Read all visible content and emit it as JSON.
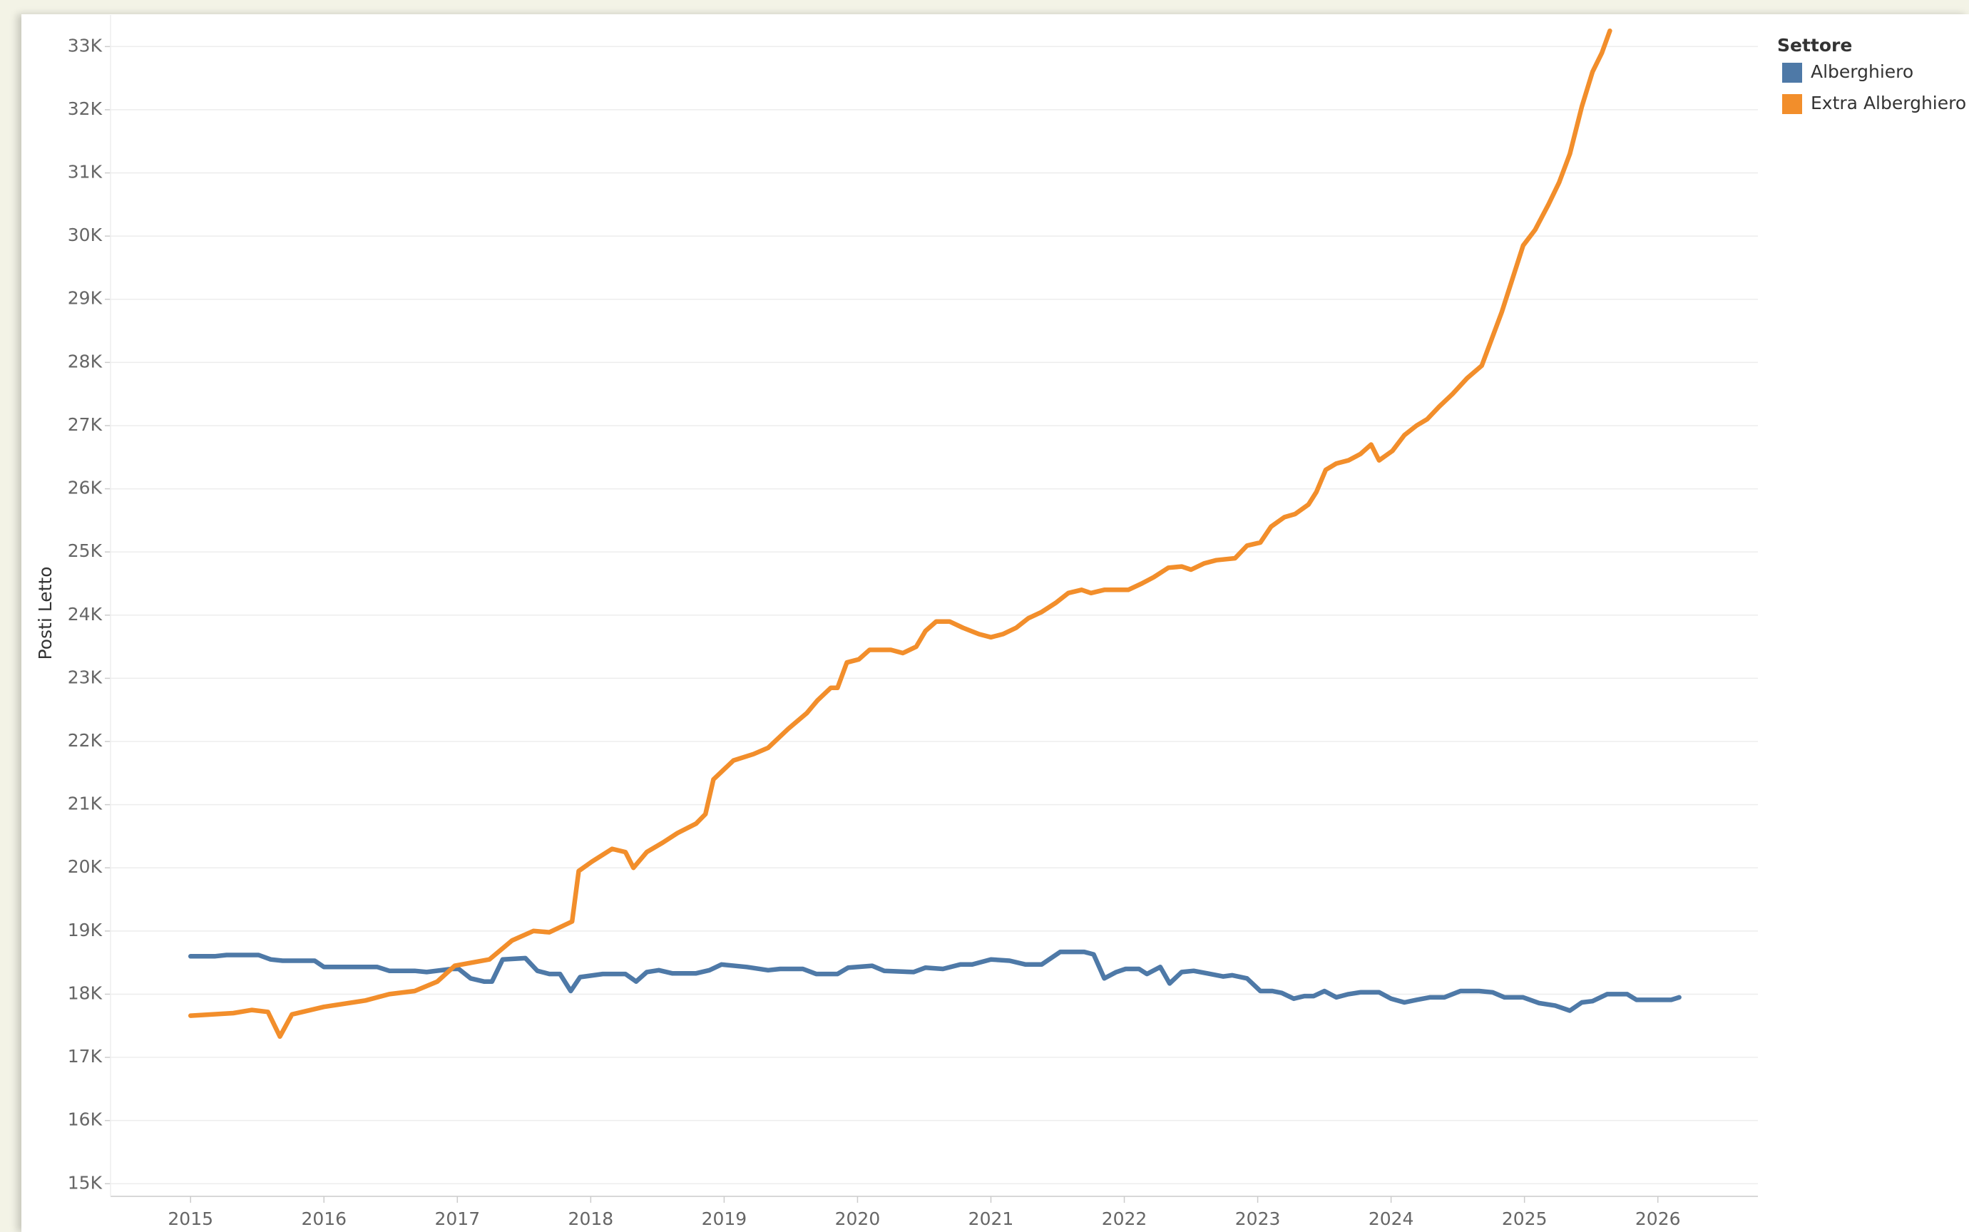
{
  "chart_data": {
    "type": "line",
    "y_label": "Posti Letto",
    "legend_title": "Settore",
    "legend_position": "right",
    "grid": true,
    "xlim": [
      2014.4,
      2026.75
    ],
    "xticks": [
      2015,
      2016,
      2017,
      2018,
      2019,
      2020,
      2021,
      2022,
      2023,
      2024,
      2025,
      2026
    ],
    "ylim": [
      14.8,
      33.5
    ],
    "yticks": [
      {
        "value": 15,
        "label": "15K"
      },
      {
        "value": 16,
        "label": "16K"
      },
      {
        "value": 17,
        "label": "17K"
      },
      {
        "value": 18,
        "label": "18K"
      },
      {
        "value": 19,
        "label": "19K"
      },
      {
        "value": 20,
        "label": "20K"
      },
      {
        "value": 21,
        "label": "21K"
      },
      {
        "value": 22,
        "label": "22K"
      },
      {
        "value": 23,
        "label": "23K"
      },
      {
        "value": 24,
        "label": "24K"
      },
      {
        "value": 25,
        "label": "25K"
      },
      {
        "value": 26,
        "label": "26K"
      },
      {
        "value": 27,
        "label": "27K"
      },
      {
        "value": 28,
        "label": "28K"
      },
      {
        "value": 29,
        "label": "29K"
      },
      {
        "value": 30,
        "label": "30K"
      },
      {
        "value": 31,
        "label": "31K"
      },
      {
        "value": 32,
        "label": "32K"
      },
      {
        "value": 33,
        "label": "33K"
      }
    ],
    "series": [
      {
        "name": "Alberghiero",
        "color": "#4e79a7",
        "x": [
          2015.0,
          2015.18,
          2015.27,
          2015.51,
          2015.6,
          2015.69,
          2015.93,
          2016.0,
          2016.4,
          2016.49,
          2016.68,
          2016.77,
          2016.96,
          2017.01,
          2017.1,
          2017.2,
          2017.26,
          2017.34,
          2017.51,
          2017.6,
          2017.69,
          2017.77,
          2017.85,
          2017.92,
          2018.09,
          2018.26,
          2018.34,
          2018.42,
          2018.51,
          2018.61,
          2018.79,
          2018.89,
          2018.98,
          2019.17,
          2019.33,
          2019.42,
          2019.59,
          2019.69,
          2019.85,
          2019.93,
          2020.11,
          2020.2,
          2020.42,
          2020.51,
          2020.64,
          2020.77,
          2020.86,
          2021.0,
          2021.14,
          2021.26,
          2021.38,
          2021.45,
          2021.52,
          2021.7,
          2021.77,
          2021.85,
          2021.94,
          2022.01,
          2022.11,
          2022.17,
          2022.27,
          2022.34,
          2022.43,
          2022.52,
          2022.62,
          2022.74,
          2022.81,
          2022.92,
          2023.02,
          2023.11,
          2023.18,
          2023.27,
          2023.35,
          2023.42,
          2023.5,
          2023.59,
          2023.68,
          2023.77,
          2023.91,
          2024.0,
          2024.1,
          2024.19,
          2024.29,
          2024.4,
          2024.52,
          2024.66,
          2024.76,
          2024.85,
          2024.99,
          2025.11,
          2025.23,
          2025.34,
          2025.43,
          2025.51,
          2025.62,
          2025.77,
          2025.84,
          2026.02,
          2026.1,
          2026.16
        ],
        "values": [
          18.6,
          18.6,
          18.62,
          18.62,
          18.55,
          18.53,
          18.53,
          18.43,
          18.43,
          18.37,
          18.37,
          18.35,
          18.4,
          18.4,
          18.25,
          18.2,
          18.2,
          18.55,
          18.57,
          18.37,
          18.32,
          18.32,
          18.05,
          18.27,
          18.32,
          18.32,
          18.2,
          18.35,
          18.38,
          18.33,
          18.33,
          18.38,
          18.47,
          18.43,
          18.38,
          18.4,
          18.4,
          18.32,
          18.32,
          18.42,
          18.45,
          18.37,
          18.35,
          18.42,
          18.4,
          18.47,
          18.47,
          18.55,
          18.53,
          18.47,
          18.47,
          18.57,
          18.67,
          18.67,
          18.63,
          18.25,
          18.35,
          18.4,
          18.4,
          18.32,
          18.43,
          18.17,
          18.35,
          18.37,
          18.33,
          18.28,
          18.3,
          18.25,
          18.05,
          18.05,
          18.02,
          17.93,
          17.97,
          17.97,
          18.05,
          17.95,
          18.0,
          18.03,
          18.03,
          17.93,
          17.87,
          17.91,
          17.95,
          17.95,
          18.05,
          18.05,
          18.03,
          17.95,
          17.95,
          17.86,
          17.82,
          17.74,
          17.87,
          17.89,
          18.0,
          18.0,
          17.91,
          17.91,
          17.91,
          17.95
        ]
      },
      {
        "name": "Extra Alberghiero",
        "color": "#f28e2b",
        "x": [
          2015.0,
          2015.32,
          2015.46,
          2015.58,
          2015.67,
          2015.76,
          2016.0,
          2016.31,
          2016.49,
          2016.68,
          2016.85,
          2016.98,
          2017.24,
          2017.41,
          2017.57,
          2017.69,
          2017.86,
          2017.91,
          2018.01,
          2018.16,
          2018.26,
          2018.32,
          2018.42,
          2018.54,
          2018.65,
          2018.79,
          2018.86,
          2018.92,
          2019.07,
          2019.22,
          2019.33,
          2019.48,
          2019.62,
          2019.7,
          2019.8,
          2019.85,
          2019.92,
          2020.01,
          2020.09,
          2020.25,
          2020.34,
          2020.44,
          2020.51,
          2020.59,
          2020.69,
          2020.79,
          2020.91,
          2021.0,
          2021.09,
          2021.19,
          2021.28,
          2021.38,
          2021.49,
          2021.58,
          2021.68,
          2021.75,
          2021.85,
          2021.96,
          2022.03,
          2022.13,
          2022.22,
          2022.33,
          2022.43,
          2022.5,
          2022.6,
          2022.69,
          2022.83,
          2022.92,
          2023.02,
          2023.1,
          2023.2,
          2023.28,
          2023.38,
          2023.44,
          2023.51,
          2023.59,
          2023.68,
          2023.77,
          2023.85,
          2023.91,
          2024.01,
          2024.1,
          2024.19,
          2024.27,
          2024.36,
          2024.46,
          2024.57,
          2024.68,
          2024.83,
          2024.99,
          2025.08,
          2025.18,
          2025.26,
          2025.34,
          2025.43,
          2025.51,
          2025.58,
          2025.64
        ],
        "values": [
          17.66,
          17.7,
          17.75,
          17.72,
          17.33,
          17.68,
          17.8,
          17.9,
          18.0,
          18.05,
          18.2,
          18.45,
          18.55,
          18.85,
          19.0,
          18.98,
          19.15,
          19.95,
          20.1,
          20.3,
          20.25,
          20.0,
          20.25,
          20.4,
          20.55,
          20.7,
          20.85,
          21.4,
          21.7,
          21.8,
          21.9,
          22.2,
          22.45,
          22.65,
          22.85,
          22.85,
          23.25,
          23.3,
          23.45,
          23.45,
          23.4,
          23.5,
          23.75,
          23.9,
          23.9,
          23.8,
          23.7,
          23.65,
          23.7,
          23.8,
          23.95,
          24.05,
          24.2,
          24.35,
          24.4,
          24.35,
          24.4,
          24.4,
          24.4,
          24.5,
          24.6,
          24.75,
          24.77,
          24.72,
          24.82,
          24.87,
          24.9,
          25.1,
          25.15,
          25.4,
          25.55,
          25.6,
          25.75,
          25.95,
          26.3,
          26.4,
          26.45,
          26.55,
          26.7,
          26.45,
          26.6,
          26.85,
          27.0,
          27.1,
          27.3,
          27.5,
          27.75,
          27.95,
          28.8,
          29.85,
          30.1,
          30.5,
          30.85,
          31.3,
          32.05,
          32.6,
          32.9,
          33.25
        ]
      }
    ]
  }
}
